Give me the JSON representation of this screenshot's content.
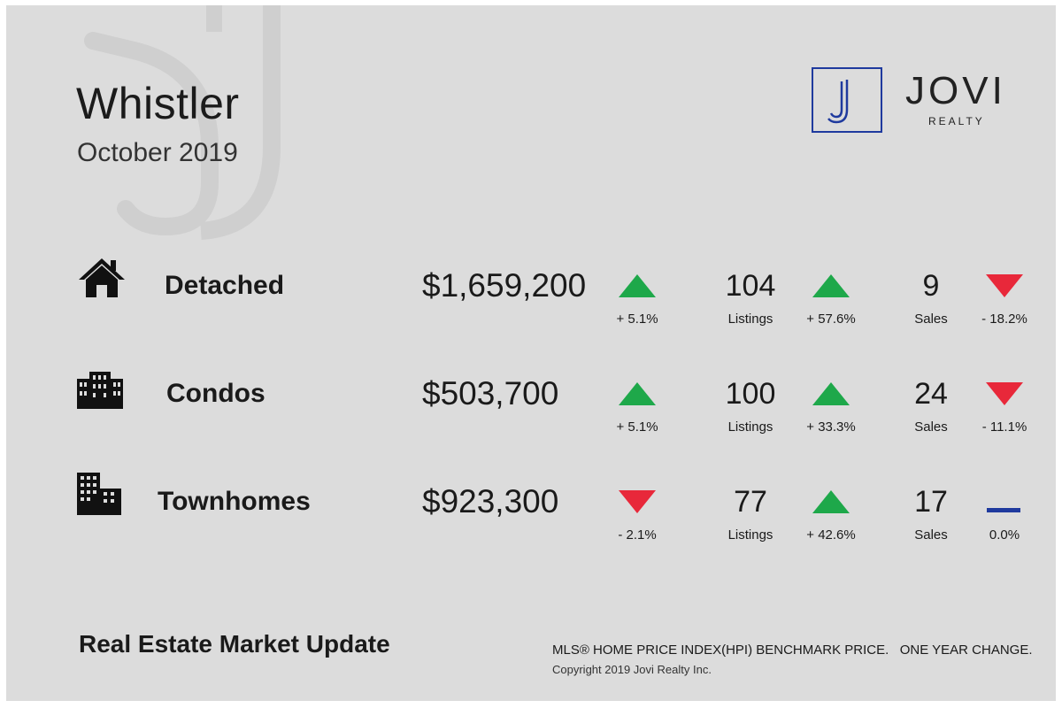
{
  "header": {
    "title": "Whistler",
    "subtitle": "October 2019"
  },
  "logo": {
    "letter": "J",
    "name": "JOVI",
    "sub": "REALTY",
    "color": "#1f3a9e"
  },
  "rows": [
    {
      "icon": "house-icon",
      "label": "Detached",
      "price": "$1,659,200",
      "price_change": "+ 5.1%",
      "price_trend": "up",
      "listings": "104",
      "listings_label": "Listings",
      "listings_change": "+ 57.6%",
      "listings_trend": "up",
      "sales": "9",
      "sales_label": "Sales",
      "sales_change": "- 18.2%",
      "sales_trend": "down"
    },
    {
      "icon": "condo-building-icon",
      "label": "Condos",
      "price": "$503,700",
      "price_change": "+ 5.1%",
      "price_trend": "up",
      "listings": "100",
      "listings_label": "Listings",
      "listings_change": "+ 33.3%",
      "listings_trend": "up",
      "sales": "24",
      "sales_label": "Sales",
      "sales_change": "- 11.1%",
      "sales_trend": "down"
    },
    {
      "icon": "townhome-buildings-icon",
      "label": "Townhomes",
      "price": "$923,300",
      "price_change": "- 2.1%",
      "price_trend": "down",
      "listings": "77",
      "listings_label": "Listings",
      "listings_change": "+ 42.6%",
      "listings_trend": "up",
      "sales": "17",
      "sales_label": "Sales",
      "sales_change": "0.0%",
      "sales_trend": "flat"
    }
  ],
  "colors": {
    "up": "#1ea84a",
    "down": "#e8283a",
    "flat": "#1f3a9e"
  },
  "footer": {
    "title": "Real Estate Market Update",
    "note": "MLS® HOME PRICE INDEX(HPI) BENCHMARK PRICE.   ONE YEAR CHANGE.",
    "copyright": "Copyright 2019 Jovi Realty Inc."
  }
}
